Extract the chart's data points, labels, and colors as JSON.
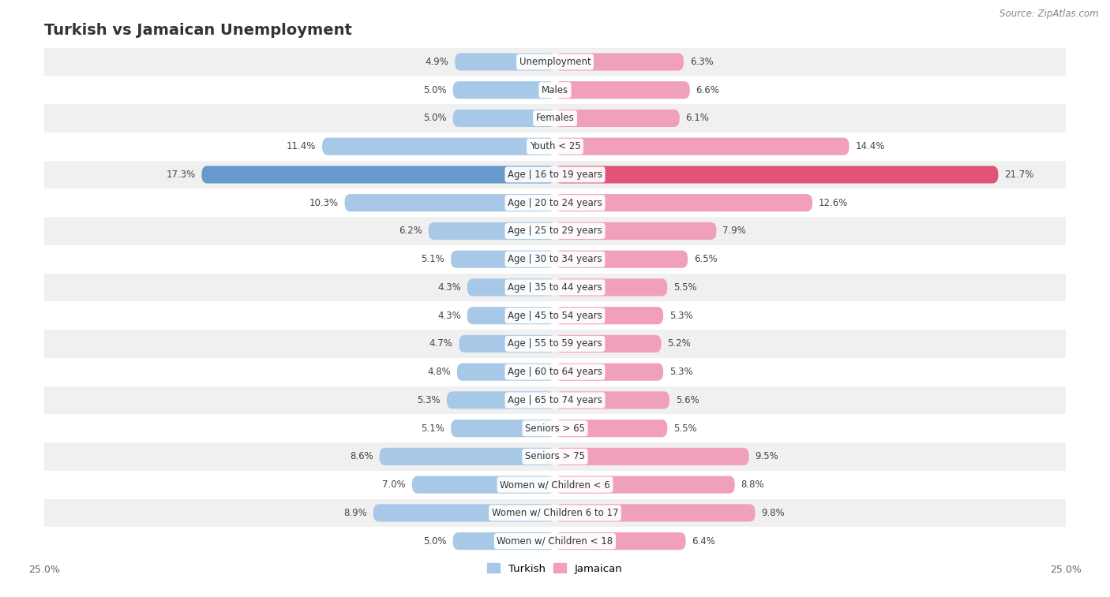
{
  "title": "Turkish vs Jamaican Unemployment",
  "source": "Source: ZipAtlas.com",
  "categories": [
    "Unemployment",
    "Males",
    "Females",
    "Youth < 25",
    "Age | 16 to 19 years",
    "Age | 20 to 24 years",
    "Age | 25 to 29 years",
    "Age | 30 to 34 years",
    "Age | 35 to 44 years",
    "Age | 45 to 54 years",
    "Age | 55 to 59 years",
    "Age | 60 to 64 years",
    "Age | 65 to 74 years",
    "Seniors > 65",
    "Seniors > 75",
    "Women w/ Children < 6",
    "Women w/ Children 6 to 17",
    "Women w/ Children < 18"
  ],
  "turkish": [
    4.9,
    5.0,
    5.0,
    11.4,
    17.3,
    10.3,
    6.2,
    5.1,
    4.3,
    4.3,
    4.7,
    4.8,
    5.3,
    5.1,
    8.6,
    7.0,
    8.9,
    5.0
  ],
  "jamaican": [
    6.3,
    6.6,
    6.1,
    14.4,
    21.7,
    12.6,
    7.9,
    6.5,
    5.5,
    5.3,
    5.2,
    5.3,
    5.6,
    5.5,
    9.5,
    8.8,
    9.8,
    6.4
  ],
  "turkish_color": "#a8c8e8",
  "jamaican_color": "#f0a0b8",
  "turkish_highlight_color": "#6699cc",
  "jamaican_highlight_color": "#e05575",
  "highlight_rows": [
    4
  ],
  "bar_height": 0.62,
  "xlim": 25.0,
  "bg_color": "#ffffff",
  "row_bg_even": "#f0f0f0",
  "row_bg_odd": "#ffffff",
  "legend_turkish": "Turkish",
  "legend_jamaican": "Jamaican",
  "title_fontsize": 14,
  "label_fontsize": 8.5,
  "value_fontsize": 8.5
}
